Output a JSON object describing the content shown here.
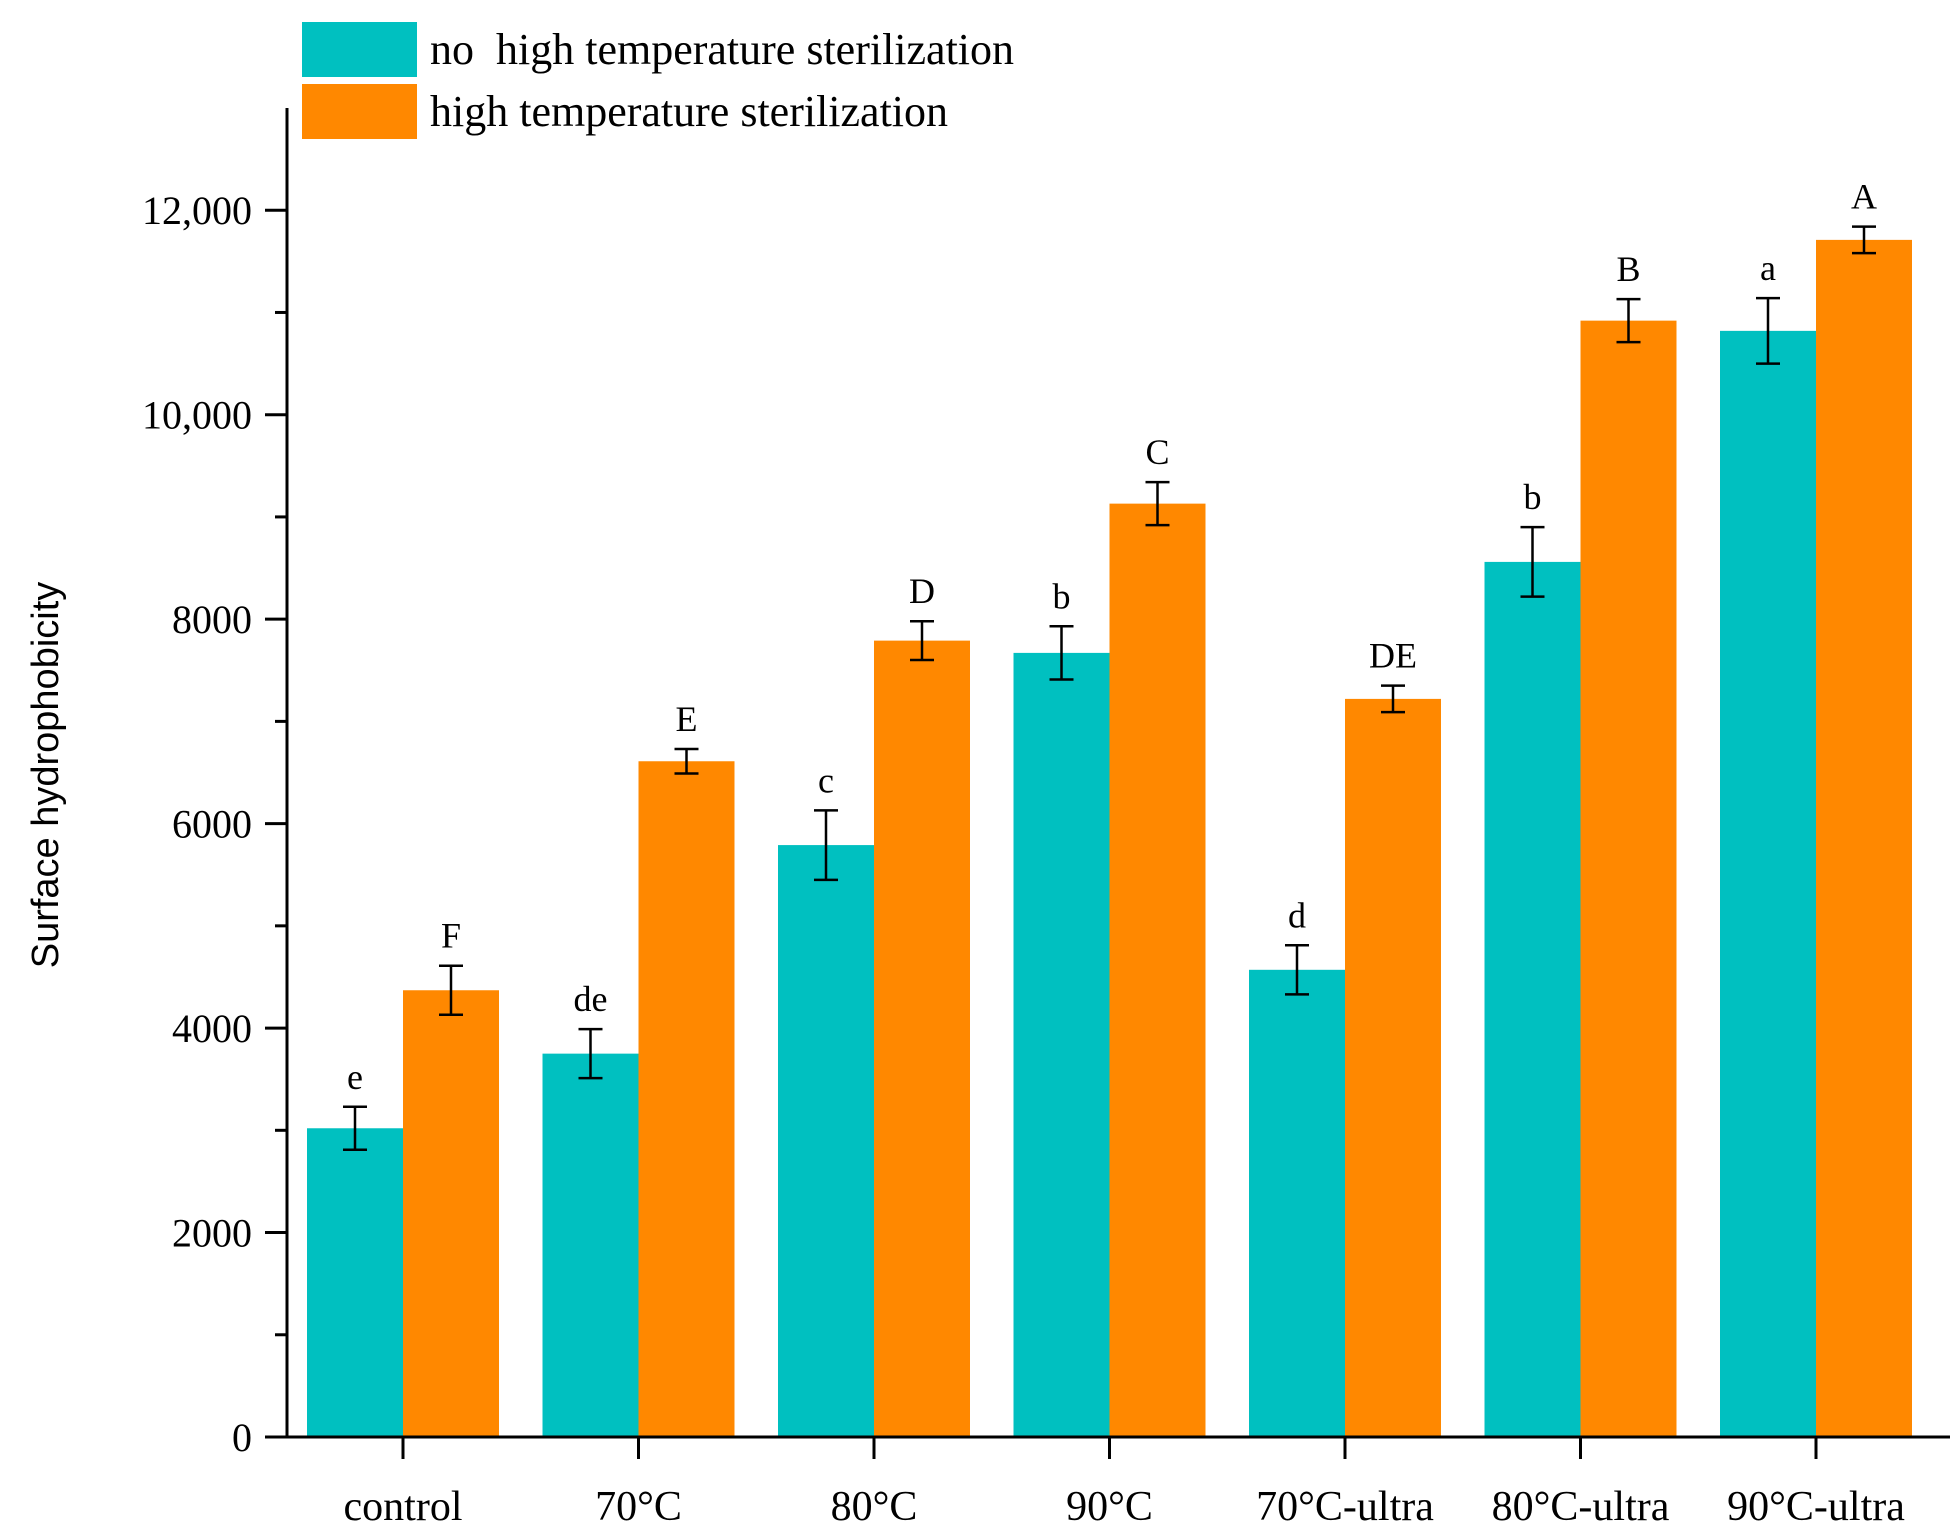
{
  "chart_data": {
    "type": "bar",
    "title": "",
    "xlabel": "",
    "ylabel": "Surface hydrophobicity",
    "ylim": [
      0,
      13000
    ],
    "yticks": [
      0,
      2000,
      4000,
      6000,
      8000,
      10000,
      12000
    ],
    "ytick_labels": [
      "0",
      "2000",
      "4000",
      "6000",
      "8000",
      "10,000",
      "12,000"
    ],
    "categories": [
      "control",
      "70°C",
      "80°C",
      "90°C",
      "70°C-ultra",
      "80°C-ultra",
      "90°C-ultra"
    ],
    "series": [
      {
        "name": "no  high temperature sterilization",
        "color": "#00c0c0",
        "values": [
          3020,
          3750,
          5790,
          7670,
          4570,
          8560,
          10820
        ],
        "errors": [
          210,
          240,
          340,
          260,
          240,
          340,
          320
        ],
        "letters": [
          "e",
          "de",
          "c",
          "b",
          "d",
          "b",
          "a"
        ]
      },
      {
        "name": "high temperature sterilization",
        "color": "#ff8800",
        "values": [
          4370,
          6610,
          7790,
          9130,
          7220,
          10920,
          11710
        ],
        "errors": [
          240,
          120,
          190,
          210,
          130,
          210,
          130
        ],
        "letters": [
          "F",
          "E",
          "D",
          "C",
          "DE",
          "B",
          "A"
        ]
      }
    ],
    "legend_position": "top-left"
  }
}
